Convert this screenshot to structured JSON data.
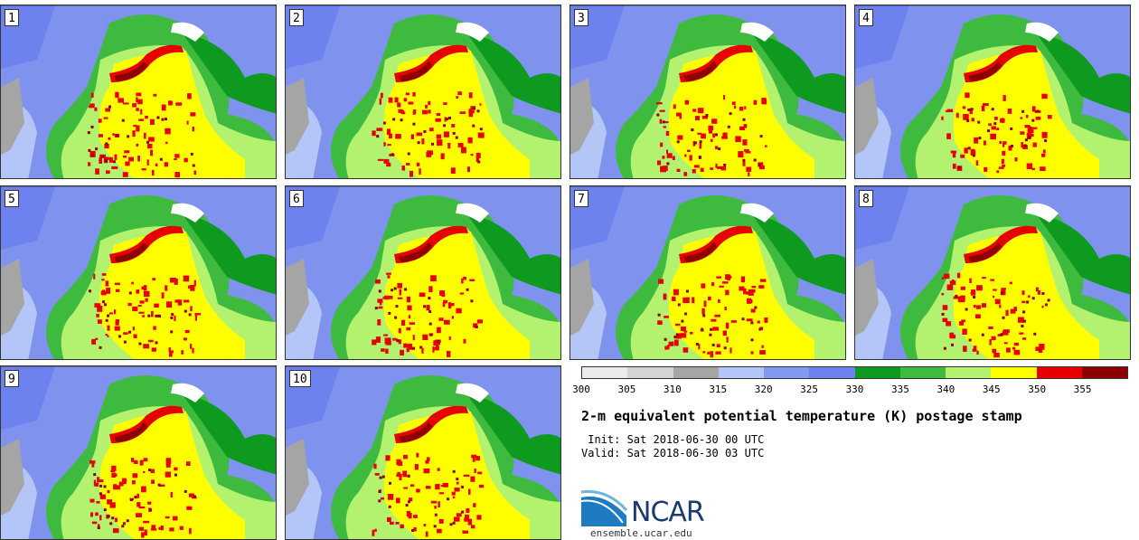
{
  "panels": [
    {
      "label": "1"
    },
    {
      "label": "2"
    },
    {
      "label": "3"
    },
    {
      "label": "4"
    },
    {
      "label": "5"
    },
    {
      "label": "6"
    },
    {
      "label": "7"
    },
    {
      "label": "8"
    },
    {
      "label": "9"
    },
    {
      "label": "10"
    }
  ],
  "colorbar": {
    "colors": [
      "#ebebeb",
      "#d4d4d4",
      "#a5a5a5",
      "#b4c5f7",
      "#8199ee",
      "#6d82ee",
      "#0d9a1f",
      "#3eba3e",
      "#b3f26e",
      "#ffff00",
      "#e60000",
      "#8c0000"
    ],
    "ticks": [
      "300",
      "305",
      "310",
      "315",
      "320",
      "325",
      "330",
      "335",
      "340",
      "345",
      "350",
      "355"
    ]
  },
  "title": "2-m equivalent potential temperature (K) postage stamp",
  "init": " Init: Sat 2018-06-30 00 UTC",
  "valid": "Valid: Sat 2018-06-30 03 UTC",
  "logo": {
    "text": "NCAR",
    "site": "ensemble.ucar.edu"
  }
}
